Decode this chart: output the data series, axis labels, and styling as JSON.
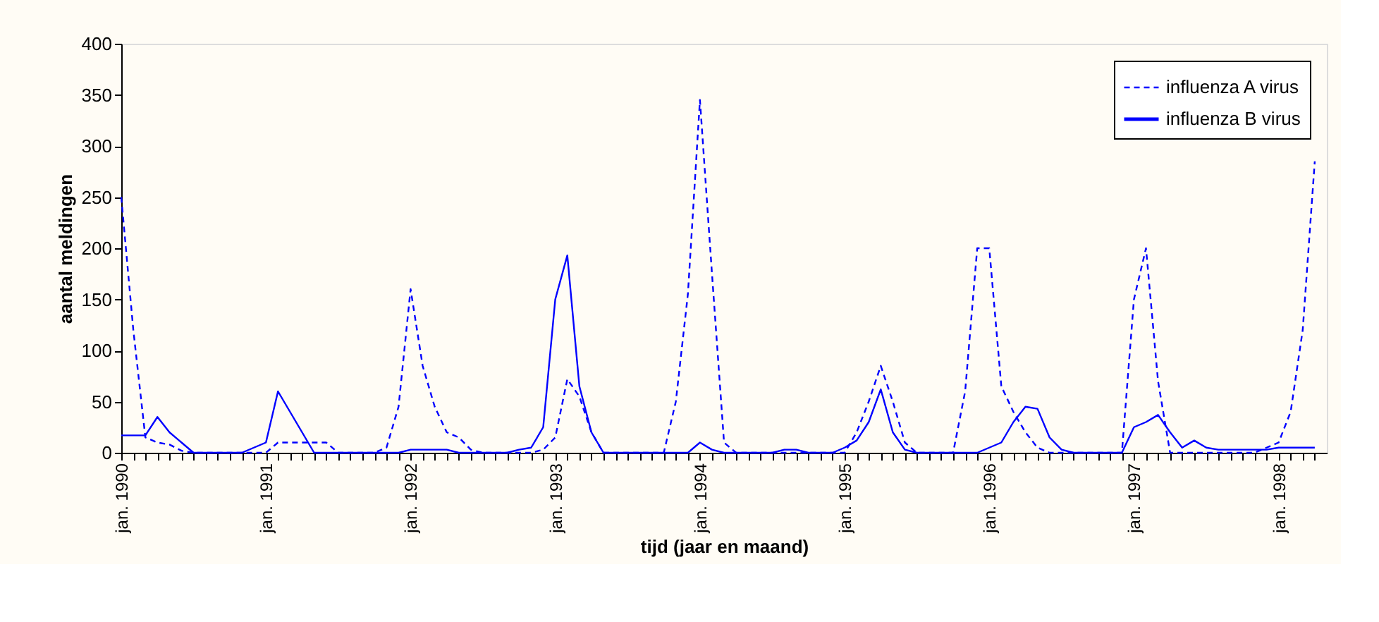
{
  "chart_data": {
    "type": "line",
    "xlabel": "tijd (jaar en maand)",
    "ylabel": "aantal meldingen",
    "categories": [
      "jan. 1990",
      null,
      null,
      null,
      null,
      null,
      null,
      null,
      null,
      null,
      null,
      null,
      "jan. 1991",
      null,
      null,
      null,
      null,
      null,
      null,
      null,
      null,
      null,
      null,
      null,
      "jan. 1992",
      null,
      null,
      null,
      null,
      null,
      null,
      null,
      null,
      null,
      null,
      null,
      "jan. 1993",
      null,
      null,
      null,
      null,
      null,
      null,
      null,
      null,
      null,
      null,
      null,
      "jan. 1994",
      null,
      null,
      null,
      null,
      null,
      null,
      null,
      null,
      null,
      null,
      null,
      "jan. 1995",
      null,
      null,
      null,
      null,
      null,
      null,
      null,
      null,
      null,
      null,
      null,
      "jan. 1996",
      null,
      null,
      null,
      null,
      null,
      null,
      null,
      null,
      null,
      null,
      null,
      "jan. 1997",
      null,
      null,
      null,
      null,
      null,
      null,
      null,
      null,
      null,
      null,
      null,
      "jan. 1998",
      null,
      null,
      null
    ],
    "series": [
      {
        "name": "influenza A virus",
        "color": "#0000ff",
        "line_style": "dashed",
        "values": [
          250,
          120,
          15,
          10,
          8,
          2,
          0,
          0,
          0,
          0,
          0,
          0,
          0,
          10,
          10,
          10,
          10,
          10,
          0,
          0,
          0,
          0,
          5,
          45,
          160,
          85,
          45,
          20,
          15,
          3,
          0,
          0,
          0,
          0,
          0,
          3,
          15,
          72,
          55,
          20,
          0,
          0,
          0,
          0,
          0,
          0,
          50,
          155,
          345,
          175,
          10,
          0,
          0,
          0,
          0,
          0,
          0,
          0,
          0,
          0,
          0,
          20,
          50,
          85,
          50,
          10,
          0,
          0,
          0,
          0,
          60,
          200,
          200,
          65,
          40,
          20,
          5,
          0,
          0,
          0,
          0,
          0,
          0,
          0,
          150,
          200,
          70,
          0,
          0,
          0,
          0,
          0,
          0,
          0,
          0,
          5,
          10,
          40,
          120,
          285
        ]
      },
      {
        "name": "influenza B virus",
        "color": "#0000ff",
        "line_style": "solid",
        "values": [
          17,
          17,
          17,
          35,
          20,
          10,
          0,
          0,
          0,
          0,
          0,
          5,
          10,
          60,
          40,
          20,
          0,
          0,
          0,
          0,
          0,
          0,
          0,
          0,
          3,
          3,
          3,
          3,
          0,
          0,
          0,
          0,
          0,
          3,
          5,
          25,
          150,
          193,
          65,
          20,
          0,
          0,
          0,
          0,
          0,
          0,
          0,
          0,
          10,
          3,
          0,
          0,
          0,
          0,
          0,
          3,
          3,
          0,
          0,
          0,
          5,
          12,
          30,
          62,
          20,
          3,
          0,
          0,
          0,
          0,
          0,
          0,
          5,
          10,
          30,
          45,
          43,
          15,
          3,
          0,
          0,
          0,
          0,
          0,
          25,
          30,
          37,
          20,
          5,
          12,
          5,
          3,
          3,
          3,
          3,
          3,
          5,
          5,
          5,
          5
        ]
      }
    ],
    "ylim": [
      0,
      400
    ],
    "yticks": [
      0,
      50,
      100,
      150,
      200,
      250,
      300,
      350,
      400
    ],
    "grid": false,
    "legend": "top right"
  }
}
